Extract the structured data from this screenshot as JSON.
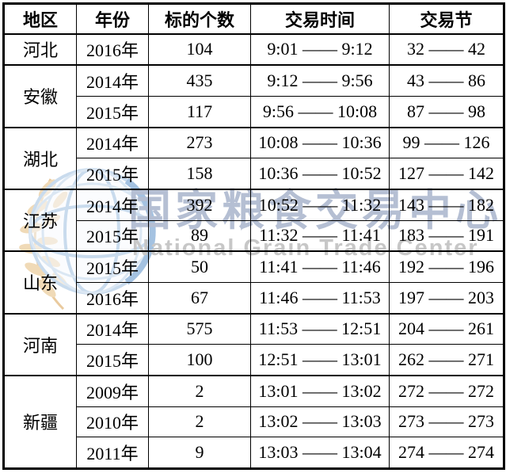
{
  "watermark": {
    "cn": "国家粮食交易中心",
    "en": "National Grain Trade Center",
    "cn_color": "#b5bfd3",
    "en_color": "#c7c7c7",
    "logo_globe_color": "#a9c6e3",
    "logo_swoosh_color": "#6e9dcf",
    "logo_wheat_color": "#e7c48c"
  },
  "table": {
    "border_color": "#000000",
    "headers": [
      "地区",
      "年份",
      "标的个数",
      "交易时间",
      "交易节"
    ],
    "groups": [
      {
        "region": "河北",
        "rows": [
          {
            "year": "2016年",
            "count": "104",
            "time": "9:01 —— 9:12",
            "session": "32 —— 42"
          }
        ]
      },
      {
        "region": "安徽",
        "rows": [
          {
            "year": "2014年",
            "count": "435",
            "time": "9:12 —— 9:56",
            "session": "43 —— 86"
          },
          {
            "year": "2015年",
            "count": "117",
            "time": "9:56 —— 10:08",
            "session": "87 —— 98"
          }
        ]
      },
      {
        "region": "湖北",
        "rows": [
          {
            "year": "2014年",
            "count": "273",
            "time": "10:08 —— 10:36",
            "session": "99 —— 126"
          },
          {
            "year": "2015年",
            "count": "158",
            "time": "10:36 —— 10:52",
            "session": "127 —— 142"
          }
        ]
      },
      {
        "region": "江苏",
        "rows": [
          {
            "year": "2014年",
            "count": "392",
            "time": "10:52 —— 11:32",
            "session": "143 —— 182"
          },
          {
            "year": "2015年",
            "count": "89",
            "time": "11:32 —— 11:41",
            "session": "183 —— 191"
          }
        ]
      },
      {
        "region": "山东",
        "rows": [
          {
            "year": "2015年",
            "count": "50",
            "time": "11:41 —— 11:46",
            "session": "192 —— 196"
          },
          {
            "year": "2016年",
            "count": "67",
            "time": "11:46 —— 11:53",
            "session": "197 —— 203"
          }
        ]
      },
      {
        "region": "河南",
        "rows": [
          {
            "year": "2014年",
            "count": "575",
            "time": "11:53 —— 12:51",
            "session": "204 —— 261"
          },
          {
            "year": "2015年",
            "count": "100",
            "time": "12:51 —— 13:01",
            "session": "262 —— 271"
          }
        ]
      },
      {
        "region": "新疆",
        "rows": [
          {
            "year": "2009年",
            "count": "2",
            "time": "13:01 —— 13:02",
            "session": "272 —— 272"
          },
          {
            "year": "2010年",
            "count": "2",
            "time": "13:02 —— 13:03",
            "session": "273 —— 273"
          },
          {
            "year": "2011年",
            "count": "9",
            "time": "13:03 —— 13:04",
            "session": "274 —— 274"
          }
        ]
      }
    ]
  }
}
